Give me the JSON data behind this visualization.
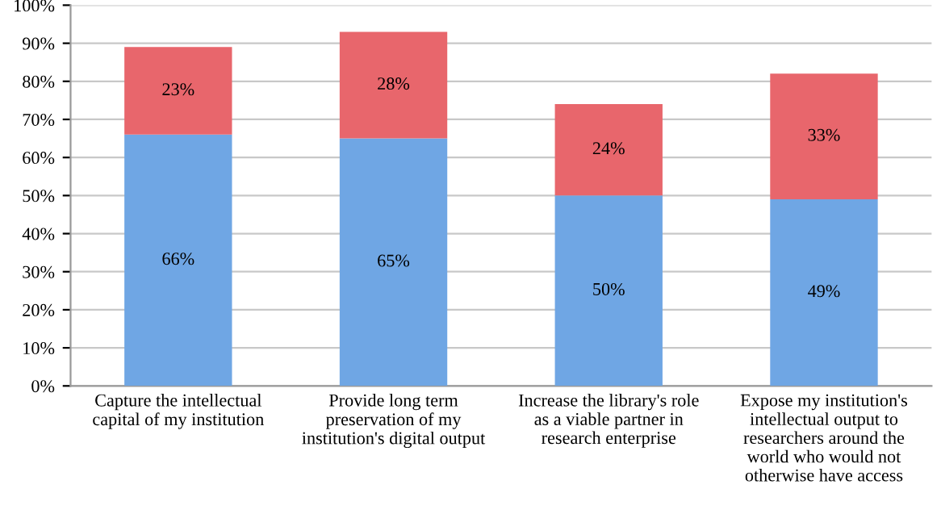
{
  "chart_data": {
    "type": "bar",
    "stacked": true,
    "categories": [
      "Capture the intellectual\ncapital of my institution",
      "Provide long term\npreservation of my\ninstitution's digital output",
      "Increase the library's role\nas a viable partner in\nresearch enterprise",
      "Expose my institution's\nintellectual output to\nresearchers around the\nworld who would not\notherwise have access"
    ],
    "series": [
      {
        "color": "#6fa6e4",
        "values": [
          66,
          65,
          50,
          49
        ],
        "value_labels": [
          "66%",
          "65%",
          "50%",
          "49%"
        ]
      },
      {
        "color": "#e8666c",
        "values": [
          23,
          28,
          24,
          33
        ],
        "value_labels": [
          "23%",
          "28%",
          "24%",
          "33%"
        ]
      }
    ],
    "ylim": [
      0,
      100
    ],
    "yticks": [
      {
        "value": 0,
        "label": "0%"
      },
      {
        "value": 10,
        "label": "10%"
      },
      {
        "value": 20,
        "label": "20%"
      },
      {
        "value": 30,
        "label": "30%"
      },
      {
        "value": 40,
        "label": "40%"
      },
      {
        "value": 50,
        "label": "50%"
      },
      {
        "value": 60,
        "label": "60%"
      },
      {
        "value": 70,
        "label": "70%"
      },
      {
        "value": 80,
        "label": "80%"
      },
      {
        "value": 90,
        "label": "90%"
      },
      {
        "value": 100,
        "label": "100%"
      }
    ],
    "grid": "y"
  }
}
